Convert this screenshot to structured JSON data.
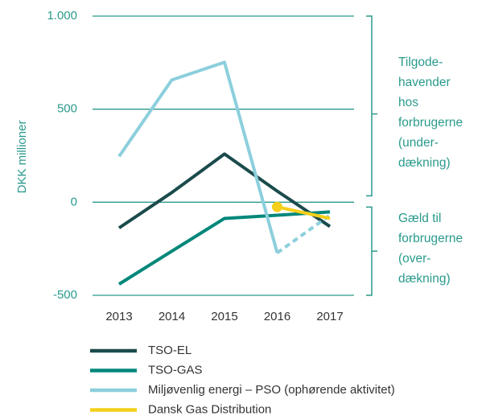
{
  "chart_data": {
    "type": "line",
    "y_label": "DKK millioner",
    "categories": [
      "2013",
      "2014",
      "2015",
      "2016",
      "2017"
    ],
    "ylim": [
      -500,
      1000
    ],
    "yticks": [
      -500,
      0,
      500,
      {
        "value": 1000,
        "label": "1.000"
      }
    ],
    "grid": true,
    "series": [
      {
        "name": "TSO-EL",
        "color": "#1b4b4c",
        "values": [
          -138,
          52,
          259,
          60,
          -130
        ]
      },
      {
        "name": "TSO-GAS",
        "color": "#00877a",
        "values": [
          -440,
          -263,
          -87,
          -70,
          -52
        ]
      },
      {
        "name": "Miljøvenlig energi – PSO (ophørende aktivitet)",
        "color": "#8ccfdc",
        "values": [
          246,
          657,
          752,
          -272,
          -70
        ],
        "dashed_from": 3
      },
      {
        "name": "Dansk Gas Distribution",
        "color": "#f5cf1a",
        "values": [
          null,
          null,
          null,
          -25,
          -87
        ],
        "marker_at": 3
      }
    ],
    "annotations": [
      {
        "lines": [
          "Tilgode-",
          "havender",
          "hos",
          "forbrugerne",
          "(under-",
          "dækning)"
        ],
        "range": [
          1000,
          0
        ]
      },
      {
        "lines": [
          "Gæld til",
          "forbrugerne",
          "(over-",
          "dækning)"
        ],
        "range": [
          0,
          -500
        ]
      }
    ]
  }
}
